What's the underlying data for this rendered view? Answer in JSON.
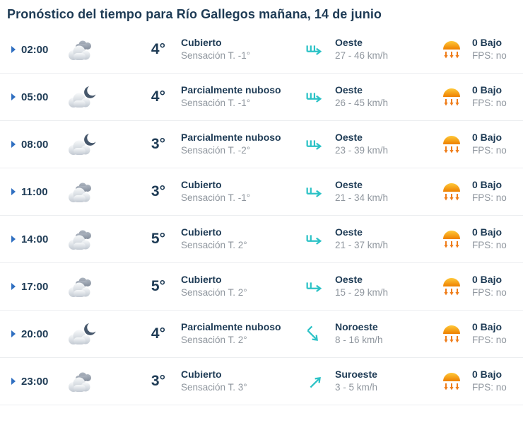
{
  "header": {
    "title": "Pronóstico del tiempo para Río Gallegos mañana, 14 de junio"
  },
  "colors": {
    "text_navy": "#1e3b55",
    "text_gray": "#8f969e",
    "expand_blue": "#2f6fc1",
    "wind_teal": "#2bc2c6",
    "uv_orange_top": "#ffc93a",
    "uv_orange_bottom": "#ee8000",
    "uv_arrow_orange": "#ef7d1a",
    "divider": "#eceef0"
  },
  "rows": [
    {
      "time": "02:00",
      "weather_icon": "cloudy",
      "temp": "4°",
      "condition": "Cubierto",
      "feels_like": "Sensación T. -1°",
      "wind_icon": "wind-arrow-right-3barbs",
      "wind_dir": "Oeste",
      "wind_speed": "27 - 46 km/h",
      "uv_icon": "uv-sun-low",
      "uv_level": "0 Bajo",
      "uv_fps": "FPS: no"
    },
    {
      "time": "05:00",
      "weather_icon": "night-partly-cloudy",
      "temp": "4°",
      "condition": "Parcialmente nuboso",
      "feels_like": "Sensación T. -1°",
      "wind_icon": "wind-arrow-right-3barbs",
      "wind_dir": "Oeste",
      "wind_speed": "26 - 45 km/h",
      "uv_icon": "uv-sun-low",
      "uv_level": "0 Bajo",
      "uv_fps": "FPS: no"
    },
    {
      "time": "08:00",
      "weather_icon": "night-partly-cloudy",
      "temp": "3°",
      "condition": "Parcialmente nuboso",
      "feels_like": "Sensación T. -2°",
      "wind_icon": "wind-arrow-right-3barbs",
      "wind_dir": "Oeste",
      "wind_speed": "23 - 39 km/h",
      "uv_icon": "uv-sun-low",
      "uv_level": "0 Bajo",
      "uv_fps": "FPS: no"
    },
    {
      "time": "11:00",
      "weather_icon": "cloudy",
      "temp": "3°",
      "condition": "Cubierto",
      "feels_like": "Sensación T. -1°",
      "wind_icon": "wind-arrow-right-2barbs",
      "wind_dir": "Oeste",
      "wind_speed": "21 - 34 km/h",
      "uv_icon": "uv-sun-low",
      "uv_level": "0 Bajo",
      "uv_fps": "FPS: no"
    },
    {
      "time": "14:00",
      "weather_icon": "cloudy",
      "temp": "5°",
      "condition": "Cubierto",
      "feels_like": "Sensación T. 2°",
      "wind_icon": "wind-arrow-right-2barbs",
      "wind_dir": "Oeste",
      "wind_speed": "21 - 37 km/h",
      "uv_icon": "uv-sun-low",
      "uv_level": "0 Bajo",
      "uv_fps": "FPS: no"
    },
    {
      "time": "17:00",
      "weather_icon": "cloudy",
      "temp": "5°",
      "condition": "Cubierto",
      "feels_like": "Sensación T. 2°",
      "wind_icon": "wind-arrow-right-2barbs",
      "wind_dir": "Oeste",
      "wind_speed": "15 - 29 km/h",
      "uv_icon": "uv-sun-low",
      "uv_level": "0 Bajo",
      "uv_fps": "FPS: no"
    },
    {
      "time": "20:00",
      "weather_icon": "night-partly-cloudy",
      "temp": "4°",
      "condition": "Parcialmente nuboso",
      "feels_like": "Sensación T. 2°",
      "wind_icon": "wind-arrow-downright-1barb",
      "wind_dir": "Noroeste",
      "wind_speed": "8 - 16 km/h",
      "uv_icon": "uv-sun-low",
      "uv_level": "0 Bajo",
      "uv_fps": "FPS: no"
    },
    {
      "time": "23:00",
      "weather_icon": "cloudy",
      "temp": "3°",
      "condition": "Cubierto",
      "feels_like": "Sensación T. 3°",
      "wind_icon": "wind-arrow-upright-plain",
      "wind_dir": "Suroeste",
      "wind_speed": "3 - 5 km/h",
      "uv_icon": "uv-sun-low",
      "uv_level": "0 Bajo",
      "uv_fps": "FPS: no"
    }
  ]
}
